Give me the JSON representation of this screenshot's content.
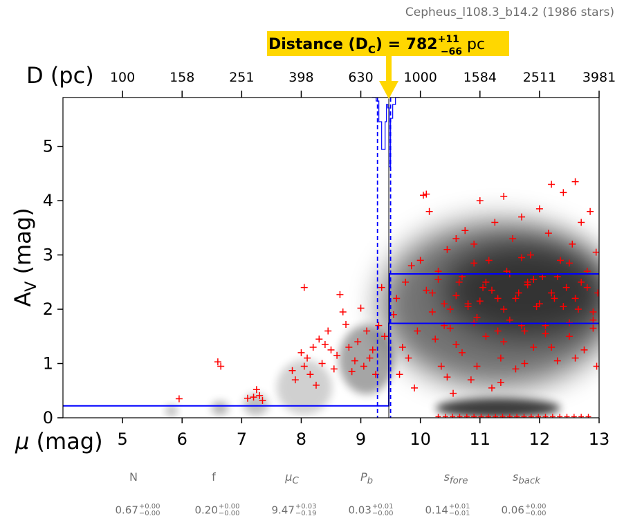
{
  "header": {
    "subtitle": "Cepheus_l108.3_b14.2 (1986 stars)"
  },
  "annotation": {
    "label": "Distance (D",
    "sub": "C",
    "eq": ") = 782",
    "plus": "+11",
    "minus": "−66",
    "unit": " pc",
    "box_color": "#FFD700"
  },
  "chart_data": {
    "type": "scatter",
    "xlabel_mu": "μ",
    "xlabel_mu_unit": " (mag)",
    "xlabel_top": "D (pc)",
    "ylabel_main": "A",
    "ylabel_sub": "V",
    "ylabel_unit": " (mag)",
    "xlim": [
      4,
      13
    ],
    "ylim": [
      0,
      5.9
    ],
    "xticks": [
      5,
      6,
      7,
      8,
      9,
      10,
      11,
      12,
      13
    ],
    "yticks": [
      0,
      1,
      2,
      3,
      4,
      5
    ],
    "top_ticks": [
      {
        "mu": 5,
        "label": "100"
      },
      {
        "mu": 6,
        "label": "158"
      },
      {
        "mu": 7,
        "label": "251"
      },
      {
        "mu": 8,
        "label": "398"
      },
      {
        "mu": 9,
        "label": "630"
      },
      {
        "mu": 10,
        "label": "1000"
      },
      {
        "mu": 11,
        "label": "1584"
      },
      {
        "mu": 12,
        "label": "2511"
      },
      {
        "mu": 13,
        "label": "3981"
      }
    ],
    "model": {
      "mu_cloud": 9.47,
      "mu_cloud_lo": 9.28,
      "mu_cloud_hi": 9.5,
      "foreground_av": 0.22,
      "background_av_low": 1.74,
      "background_av_high": 2.65
    },
    "colors": {
      "stars": "#ff0000",
      "model": "#0000ff",
      "arrow": "#FFD700"
    },
    "stars": [
      [
        5.95,
        0.35
      ],
      [
        6.6,
        1.03
      ],
      [
        6.65,
        0.95
      ],
      [
        7.1,
        0.36
      ],
      [
        7.2,
        0.38
      ],
      [
        7.25,
        0.52
      ],
      [
        7.3,
        0.41
      ],
      [
        7.35,
        0.32
      ],
      [
        7.85,
        0.87
      ],
      [
        7.9,
        0.7
      ],
      [
        8.0,
        1.2
      ],
      [
        8.05,
        0.95
      ],
      [
        8.1,
        1.1
      ],
      [
        8.05,
        2.4
      ],
      [
        8.15,
        0.8
      ],
      [
        8.2,
        1.3
      ],
      [
        8.25,
        0.6
      ],
      [
        8.3,
        1.45
      ],
      [
        8.35,
        1.0
      ],
      [
        8.4,
        1.35
      ],
      [
        8.45,
        1.6
      ],
      [
        8.5,
        1.25
      ],
      [
        8.55,
        0.9
      ],
      [
        8.6,
        1.15
      ],
      [
        8.65,
        2.27
      ],
      [
        8.7,
        1.95
      ],
      [
        8.75,
        1.72
      ],
      [
        8.8,
        1.3
      ],
      [
        8.85,
        0.85
      ],
      [
        8.9,
        1.05
      ],
      [
        8.95,
        1.4
      ],
      [
        9.0,
        2.02
      ],
      [
        9.05,
        0.95
      ],
      [
        9.1,
        1.6
      ],
      [
        9.15,
        1.1
      ],
      [
        9.2,
        1.25
      ],
      [
        9.25,
        0.8
      ],
      [
        9.3,
        1.7
      ],
      [
        9.35,
        2.4
      ],
      [
        9.4,
        1.5
      ],
      [
        9.55,
        1.9
      ],
      [
        9.6,
        2.2
      ],
      [
        9.65,
        0.8
      ],
      [
        9.7,
        1.3
      ],
      [
        9.75,
        2.5
      ],
      [
        9.8,
        1.1
      ],
      [
        9.85,
        2.8
      ],
      [
        9.9,
        0.55
      ],
      [
        9.95,
        1.6
      ],
      [
        10.0,
        2.9
      ],
      [
        10.05,
        4.1
      ],
      [
        10.1,
        4.12
      ],
      [
        10.15,
        3.8
      ],
      [
        10.2,
        2.3
      ],
      [
        10.25,
        1.45
      ],
      [
        10.3,
        2.7
      ],
      [
        10.35,
        0.95
      ],
      [
        10.4,
        1.7
      ],
      [
        10.45,
        3.1
      ],
      [
        10.5,
        2.0
      ],
      [
        10.55,
        0.45
      ],
      [
        10.6,
        3.3
      ],
      [
        10.65,
        2.5
      ],
      [
        10.7,
        1.2
      ],
      [
        10.75,
        3.45
      ],
      [
        10.8,
        2.1
      ],
      [
        10.85,
        0.7
      ],
      [
        10.9,
        3.2
      ],
      [
        10.95,
        1.85
      ],
      [
        11.0,
        4.0
      ],
      [
        11.05,
        2.4
      ],
      [
        11.1,
        1.5
      ],
      [
        11.15,
        2.9
      ],
      [
        11.2,
        0.55
      ],
      [
        11.25,
        3.6
      ],
      [
        11.3,
        2.2
      ],
      [
        11.35,
        1.1
      ],
      [
        11.4,
        4.08
      ],
      [
        11.45,
        2.7
      ],
      [
        11.5,
        1.8
      ],
      [
        11.55,
        3.3
      ],
      [
        11.6,
        0.9
      ],
      [
        11.65,
        2.3
      ],
      [
        11.7,
        3.7
      ],
      [
        11.75,
        1.6
      ],
      [
        11.8,
        2.5
      ],
      [
        11.85,
        3.0
      ],
      [
        11.9,
        1.3
      ],
      [
        11.95,
        2.05
      ],
      [
        12.0,
        3.85
      ],
      [
        12.05,
        2.6
      ],
      [
        12.1,
        1.7
      ],
      [
        12.15,
        3.4
      ],
      [
        12.2,
        4.3
      ],
      [
        12.25,
        2.2
      ],
      [
        12.3,
        1.05
      ],
      [
        12.35,
        2.9
      ],
      [
        12.4,
        4.15
      ],
      [
        12.45,
        2.4
      ],
      [
        12.5,
        1.5
      ],
      [
        12.55,
        3.2
      ],
      [
        12.6,
        4.35
      ],
      [
        12.65,
        2.0
      ],
      [
        12.7,
        3.6
      ],
      [
        12.75,
        1.25
      ],
      [
        12.8,
        2.7
      ],
      [
        12.85,
        3.8
      ],
      [
        12.9,
        1.8
      ],
      [
        12.95,
        3.05
      ],
      [
        12.98,
        2.3
      ],
      [
        12.96,
        0.95
      ],
      [
        12.9,
        1.95
      ],
      [
        10.2,
        1.95
      ],
      [
        10.4,
        2.1
      ],
      [
        10.6,
        2.25
      ],
      [
        10.8,
        2.05
      ],
      [
        11.0,
        2.15
      ],
      [
        11.2,
        2.35
      ],
      [
        11.4,
        2.0
      ],
      [
        11.6,
        2.2
      ],
      [
        11.8,
        2.45
      ],
      [
        12.0,
        2.1
      ],
      [
        12.2,
        2.3
      ],
      [
        12.4,
        2.05
      ],
      [
        12.6,
        2.2
      ],
      [
        12.8,
        2.4
      ],
      [
        10.3,
        2.55
      ],
      [
        10.7,
        2.6
      ],
      [
        11.1,
        2.5
      ],
      [
        11.5,
        2.65
      ],
      [
        11.9,
        2.55
      ],
      [
        12.3,
        2.6
      ],
      [
        12.7,
        2.5
      ],
      [
        10.5,
        1.65
      ],
      [
        10.9,
        1.75
      ],
      [
        11.3,
        1.6
      ],
      [
        11.7,
        1.7
      ],
      [
        12.1,
        1.55
      ],
      [
        12.5,
        1.75
      ],
      [
        12.9,
        1.65
      ],
      [
        10.1,
        2.35
      ],
      [
        10.9,
        2.85
      ],
      [
        11.7,
        2.95
      ],
      [
        12.5,
        2.85
      ],
      [
        10.6,
        1.35
      ],
      [
        11.4,
        1.4
      ],
      [
        12.2,
        1.3
      ],
      [
        10.95,
        0.95
      ],
      [
        11.75,
        1.0
      ],
      [
        12.6,
        1.1
      ],
      [
        10.45,
        0.75
      ],
      [
        11.35,
        0.65
      ]
    ]
  }
}
